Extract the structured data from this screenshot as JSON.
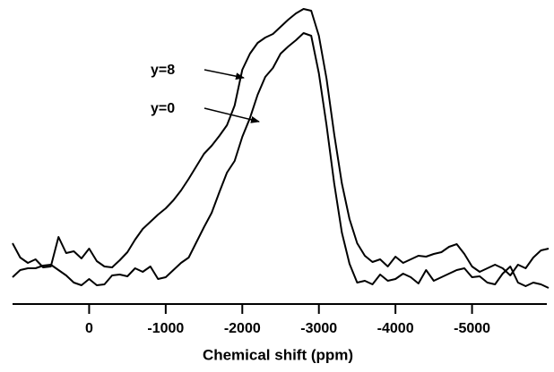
{
  "chart_data": {
    "type": "line",
    "x_label": "Chemical shift (ppm)",
    "x": [
      1000,
      900,
      800,
      700,
      600,
      500,
      400,
      300,
      200,
      100,
      0,
      -100,
      -200,
      -300,
      -400,
      -500,
      -600,
      -700,
      -800,
      -900,
      -1000,
      -1100,
      -1200,
      -1300,
      -1400,
      -1500,
      -1600,
      -1700,
      -1800,
      -1900,
      -2000,
      -2100,
      -2200,
      -2300,
      -2400,
      -2500,
      -2600,
      -2700,
      -2800,
      -2900,
      -3000,
      -3100,
      -3200,
      -3300,
      -3400,
      -3500,
      -3600,
      -3700,
      -3800,
      -3900,
      -4000,
      -4100,
      -4200,
      -4300,
      -4400,
      -4500,
      -4600,
      -4700,
      -4800,
      -4900,
      -5000,
      -5100,
      -5200,
      -5300,
      -5400,
      -5500,
      -5600,
      -5700,
      -5800,
      -5900,
      -6000
    ],
    "series": [
      {
        "name": "y=8",
        "color": "#000000",
        "values": [
          58,
          42,
          36,
          40,
          31,
          32,
          65,
          47,
          49,
          41,
          52,
          38,
          32,
          31,
          39,
          48,
          62,
          74,
          82,
          90,
          97,
          106,
          117,
          130,
          144,
          158,
          167,
          178,
          190,
          212,
          252,
          270,
          282,
          288,
          292,
          300,
          308,
          315,
          320,
          318,
          290,
          242,
          180,
          125,
          85,
          58,
          44,
          37,
          40,
          32,
          43,
          36,
          40,
          44,
          43,
          46,
          48,
          54,
          57,
          46,
          32,
          26,
          30,
          34,
          30,
          22,
          34,
          30,
          42,
          50,
          52
        ]
      },
      {
        "name": "y=0",
        "color": "#000000",
        "values": [
          20,
          28,
          30,
          30,
          33,
          34,
          28,
          22,
          14,
          11,
          18,
          11,
          12,
          22,
          23,
          21,
          30,
          26,
          32,
          18,
          20,
          28,
          36,
          42,
          59,
          76,
          92,
          115,
          137,
          150,
          177,
          198,
          224,
          244,
          254,
          270,
          278,
          285,
          293,
          290,
          248,
          190,
          125,
          70,
          35,
          14,
          16,
          12,
          23,
          16,
          18,
          24,
          20,
          13,
          28,
          16,
          20,
          24,
          28,
          30,
          20,
          21,
          14,
          12,
          24,
          32,
          14,
          10,
          14,
          12,
          8
        ]
      }
    ],
    "xlim": [
      1000,
      -6000
    ],
    "xticks": [
      0,
      -1000,
      -2000,
      -3000,
      -4000,
      -5000
    ],
    "ylim": [
      0,
      330
    ]
  }
}
